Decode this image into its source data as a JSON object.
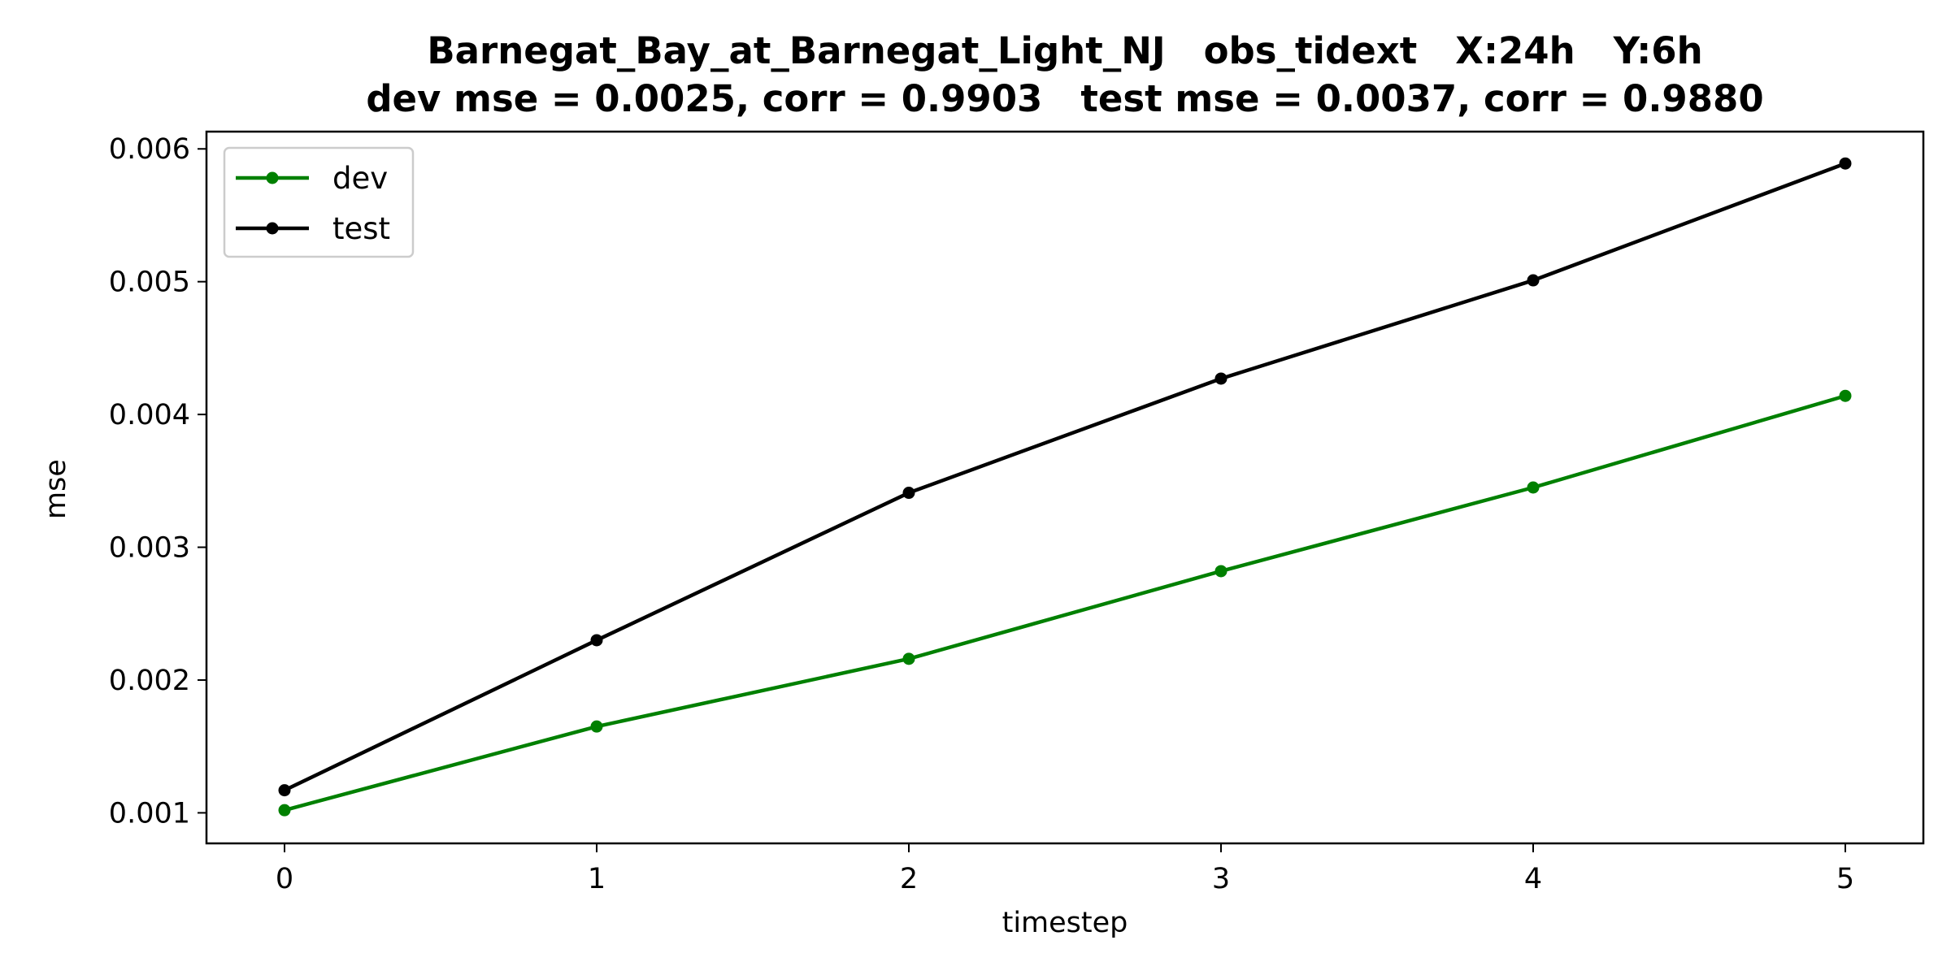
{
  "chart_data": {
    "type": "line",
    "title_line1": "Barnegat_Bay_at_Barnegat_Light_NJ   obs_tidext   X:24h   Y:6h",
    "title_line2": "dev mse = 0.0025, corr = 0.9903   test mse = 0.0037, corr = 0.9880",
    "xlabel": "timestep",
    "ylabel": "mse",
    "x": [
      0,
      1,
      2,
      3,
      4,
      5
    ],
    "xticks": [
      "0",
      "1",
      "2",
      "3",
      "4",
      "5"
    ],
    "yticks": [
      "0.001",
      "0.002",
      "0.003",
      "0.004",
      "0.005",
      "0.006"
    ],
    "ytick_values": [
      0.001,
      0.002,
      0.003,
      0.004,
      0.005,
      0.006
    ],
    "xlim": [
      -0.25,
      5.25
    ],
    "ylim": [
      0.00077,
      0.00613
    ],
    "grid": false,
    "legend_position": "upper-left",
    "series": [
      {
        "name": "dev",
        "color": "#008000",
        "values": [
          0.00102,
          0.00165,
          0.00216,
          0.00282,
          0.00345,
          0.00414
        ]
      },
      {
        "name": "test",
        "color": "#000000",
        "values": [
          0.00117,
          0.0023,
          0.00341,
          0.00427,
          0.00501,
          0.00589
        ]
      }
    ]
  }
}
